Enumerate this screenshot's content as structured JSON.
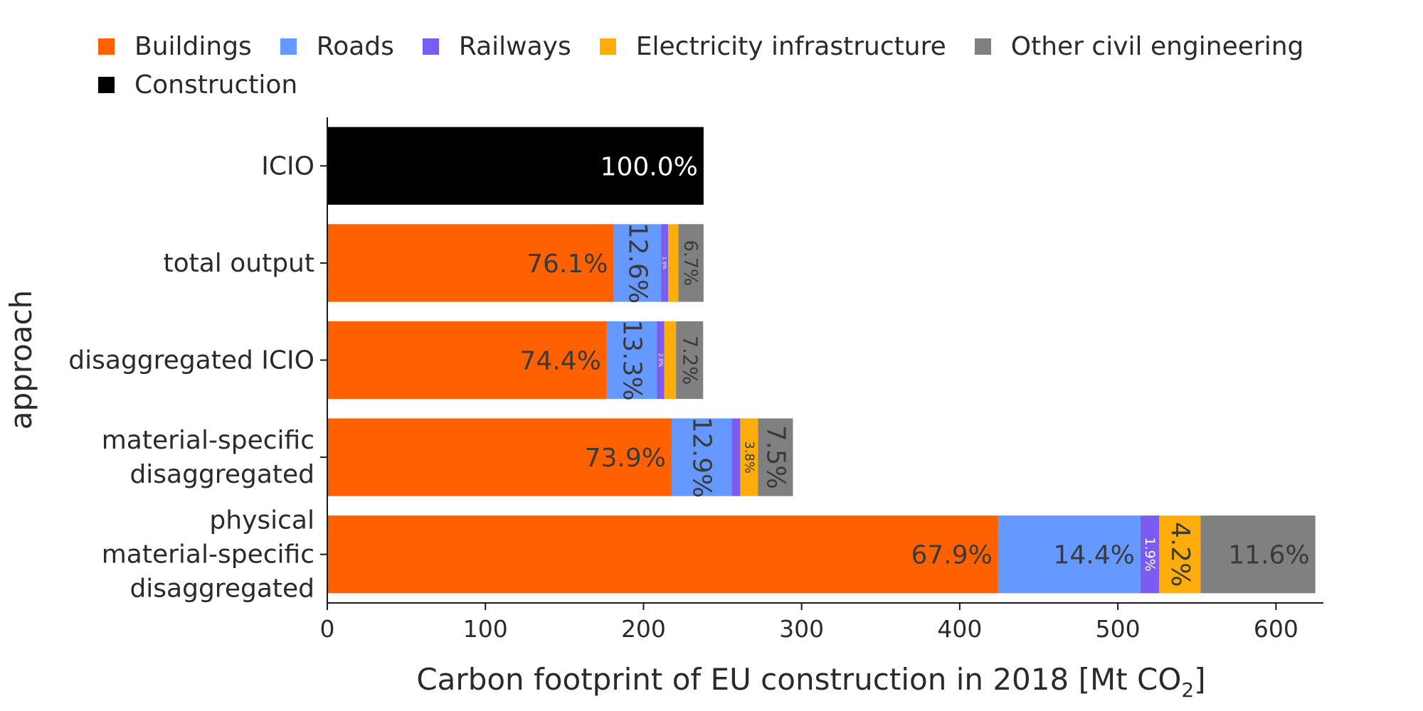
{
  "chart_data": {
    "type": "bar",
    "orientation": "horizontal",
    "stacked": true,
    "xlabel": "Carbon footprint of EU construction in 2018 [Mt CO2]",
    "xlabel_main": "Carbon footprint of EU construction in 2018 [Mt CO",
    "xlabel_sub": "2",
    "xlabel_end": "]",
    "ylabel": "approach",
    "xlim": [
      0,
      630
    ],
    "xticks": [
      0,
      100,
      200,
      300,
      400,
      500,
      600
    ],
    "grid": false,
    "legend_position": "top",
    "categories": [
      "ICIO",
      "total output",
      "disaggregated ICIO",
      "material-specific disaggregated",
      "physical material-specific disaggregated"
    ],
    "category_lines": [
      [
        "ICIO"
      ],
      [
        "total output"
      ],
      [
        "disaggregated ICIO"
      ],
      [
        "material-specific",
        "disaggregated"
      ],
      [
        "physical",
        "material-specific",
        "disaggregated"
      ]
    ],
    "series": [
      {
        "name": "Buildings",
        "color": "#ff6100",
        "values": [
          0,
          181.1,
          176.8,
          217.8,
          424.3
        ],
        "labels": [
          "",
          "76.1%",
          "74.4%",
          "73.9%",
          "67.9%"
        ]
      },
      {
        "name": "Roads",
        "color": "#6699ff",
        "values": [
          0,
          30.0,
          31.6,
          38.0,
          90.0
        ],
        "labels": [
          "",
          "12.6%",
          "13.3%",
          "12.9%",
          "14.4%"
        ]
      },
      {
        "name": "Railways",
        "color": "#7b5cf0",
        "values": [
          0,
          4.5,
          4.8,
          5.4,
          11.9
        ],
        "labels": [
          "",
          "1.9%",
          "2.0%",
          "",
          "1.9%"
        ]
      },
      {
        "name": "Electricity infrastructure",
        "color": "#ffad0a",
        "values": [
          0,
          6.5,
          7.4,
          11.2,
          26.2
        ],
        "labels": [
          "",
          "",
          "",
          "3.8%",
          "4.2%"
        ]
      },
      {
        "name": "Other civil engineering",
        "color": "#808080",
        "values": [
          0,
          15.9,
          17.1,
          22.1,
          72.5
        ],
        "labels": [
          "",
          "6.7%",
          "7.2%",
          "7.5%",
          "11.6%"
        ]
      },
      {
        "name": "Construction",
        "color": "#000000",
        "values": [
          238,
          0,
          0,
          0,
          0
        ],
        "labels": [
          "100.0%",
          "",
          "",
          "",
          ""
        ]
      }
    ]
  }
}
